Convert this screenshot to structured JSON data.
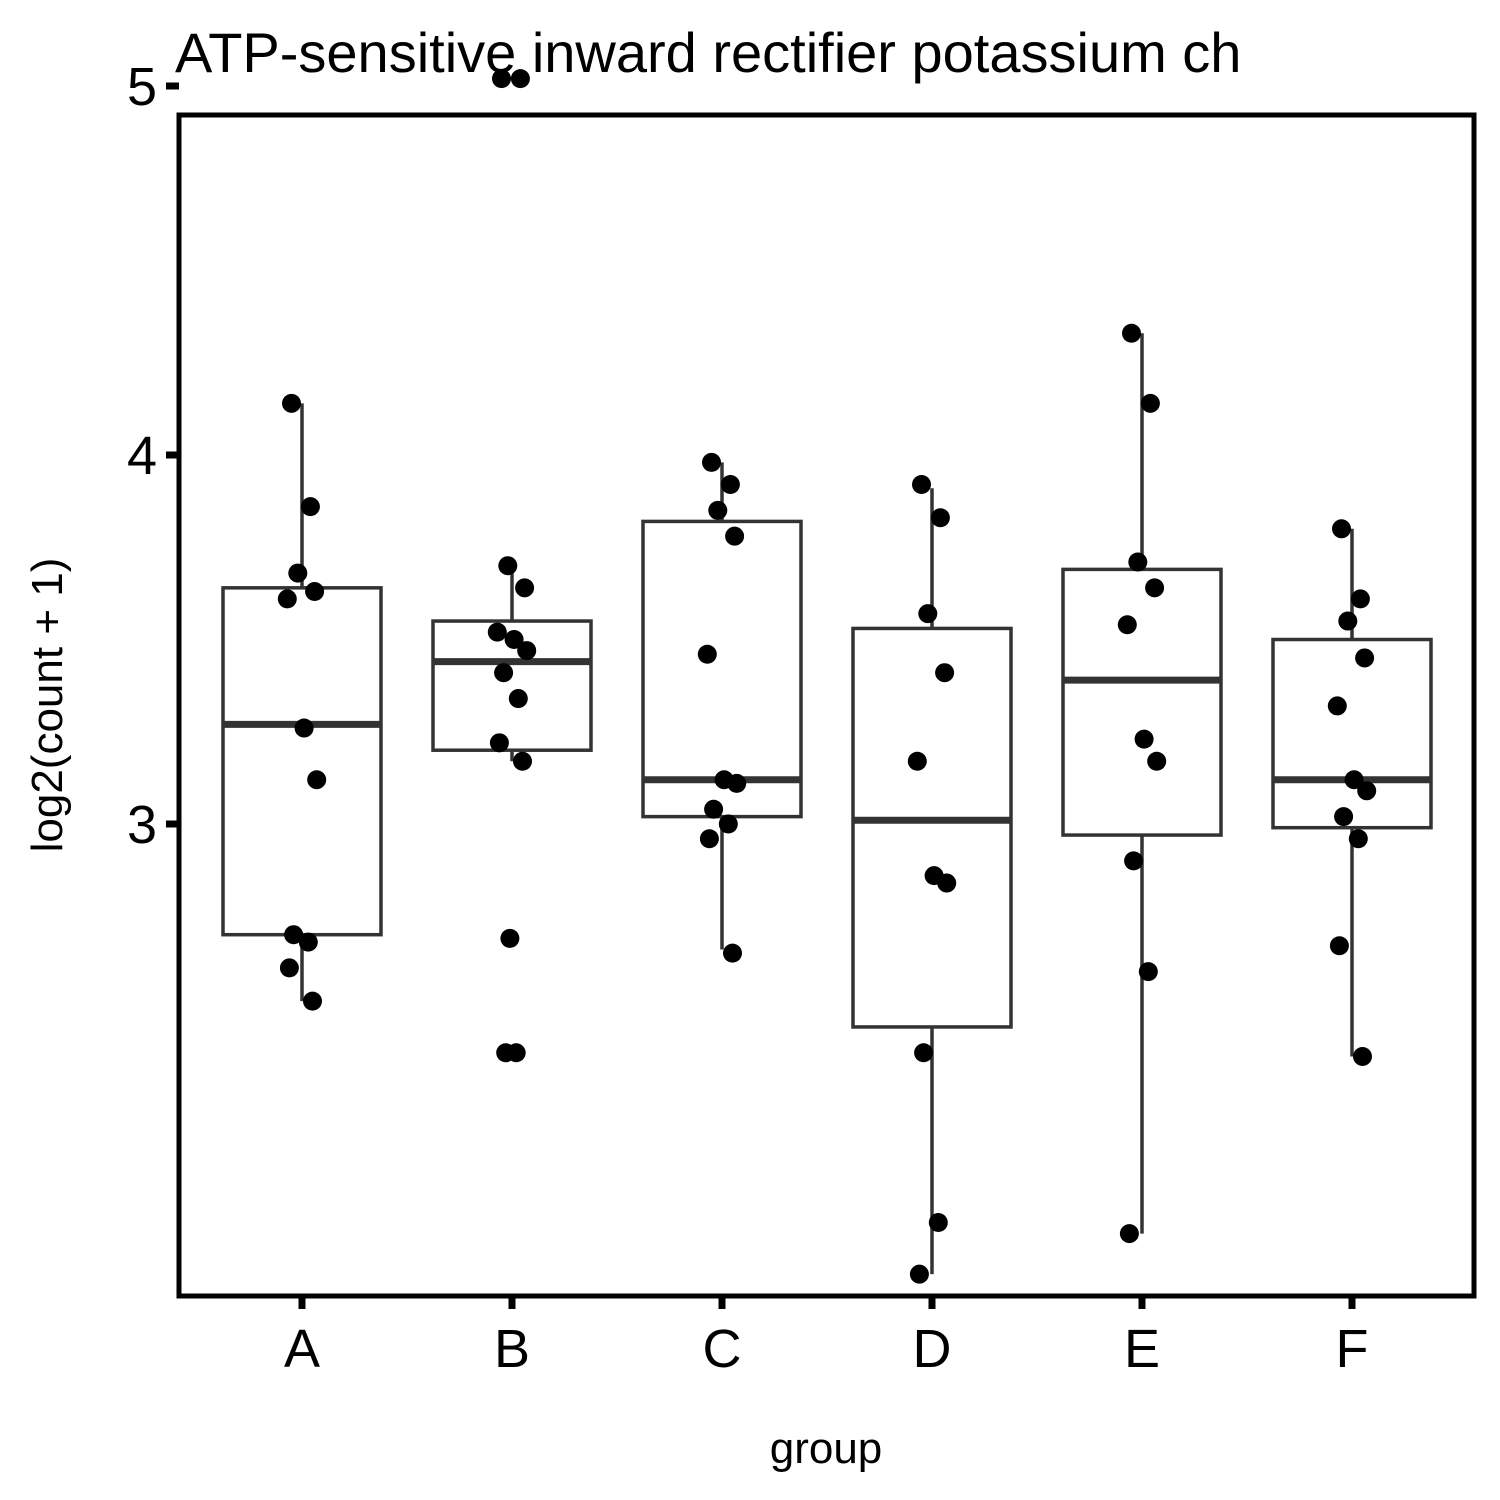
{
  "chart_data": {
    "type": "box",
    "title": "ATP-sensitive inward rectifier potassium ch",
    "xlabel": "group",
    "ylabel": "log2(count + 1)",
    "categories": [
      "A",
      "B",
      "C",
      "D",
      "E",
      "F"
    ],
    "y_ticks": [
      3,
      4,
      5
    ],
    "ylim": [
      1.74,
      5.19
    ],
    "grid": false,
    "legend": "none",
    "boxes": [
      {
        "category": "A",
        "lower_whisker": 2.52,
        "q1": 2.7,
        "median": 3.27,
        "q3": 3.64,
        "upper_whisker": 4.14
      },
      {
        "category": "B",
        "lower_whisker": 3.17,
        "q1": 3.2,
        "median": 3.44,
        "q3": 3.55,
        "upper_whisker": 3.7
      },
      {
        "category": "C",
        "lower_whisker": 2.66,
        "q1": 3.02,
        "median": 3.12,
        "q3": 3.82,
        "upper_whisker": 3.98
      },
      {
        "category": "D",
        "lower_whisker": 1.78,
        "q1": 2.45,
        "median": 3.01,
        "q3": 3.53,
        "upper_whisker": 3.91
      },
      {
        "category": "E",
        "lower_whisker": 1.89,
        "q1": 2.97,
        "median": 3.39,
        "q3": 3.69,
        "upper_whisker": 4.33
      },
      {
        "category": "F",
        "lower_whisker": 2.37,
        "q1": 2.99,
        "median": 3.12,
        "q3": 3.5,
        "upper_whisker": 3.8
      }
    ],
    "points": [
      {
        "category": "A",
        "values": [
          4.14,
          3.86,
          3.68,
          3.63,
          3.61,
          3.26,
          3.12,
          2.7,
          2.68,
          2.61,
          2.52
        ]
      },
      {
        "category": "B",
        "values": [
          5.02,
          5.02,
          3.7,
          3.64,
          3.52,
          3.5,
          3.47,
          3.41,
          3.34,
          3.22,
          3.17,
          2.69,
          2.38,
          2.38
        ]
      },
      {
        "category": "C",
        "values": [
          3.98,
          3.92,
          3.85,
          3.78,
          3.46,
          3.12,
          3.11,
          3.04,
          3.0,
          2.96,
          2.65
        ]
      },
      {
        "category": "D",
        "values": [
          3.92,
          3.83,
          3.57,
          3.41,
          3.17,
          2.86,
          2.84,
          2.38,
          1.92,
          1.78
        ]
      },
      {
        "category": "E",
        "values": [
          4.33,
          4.14,
          3.71,
          3.64,
          3.54,
          3.23,
          3.17,
          2.9,
          2.6,
          1.89
        ]
      },
      {
        "category": "F",
        "values": [
          3.8,
          3.61,
          3.55,
          3.45,
          3.32,
          3.12,
          3.09,
          3.02,
          2.96,
          2.67,
          2.37
        ]
      }
    ]
  }
}
